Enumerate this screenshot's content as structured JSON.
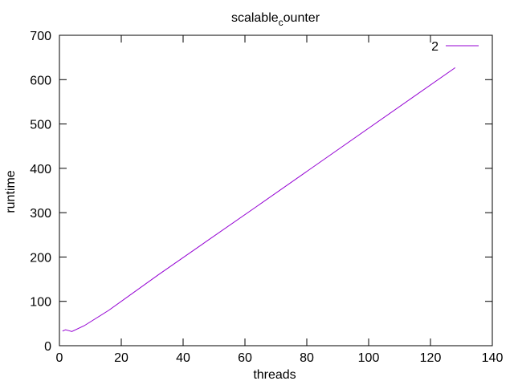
{
  "chart_data": {
    "type": "line",
    "title": {
      "main": "scalable",
      "subscript": "c",
      "rest": "ounter"
    },
    "xlabel": "threads",
    "ylabel": "runtime",
    "xlim": [
      0,
      140
    ],
    "ylim": [
      0,
      700
    ],
    "xticks": [
      0,
      20,
      40,
      60,
      80,
      100,
      120,
      140
    ],
    "yticks": [
      0,
      100,
      200,
      300,
      400,
      500,
      600,
      700
    ],
    "grid": false,
    "legend_position": "top-right",
    "series": [
      {
        "name": "2",
        "color": "#9400d3",
        "x": [
          1,
          2,
          3,
          4,
          8,
          16,
          32,
          64,
          128
        ],
        "y": [
          33,
          36,
          34,
          32,
          45,
          80,
          160,
          315,
          627
        ]
      }
    ]
  }
}
